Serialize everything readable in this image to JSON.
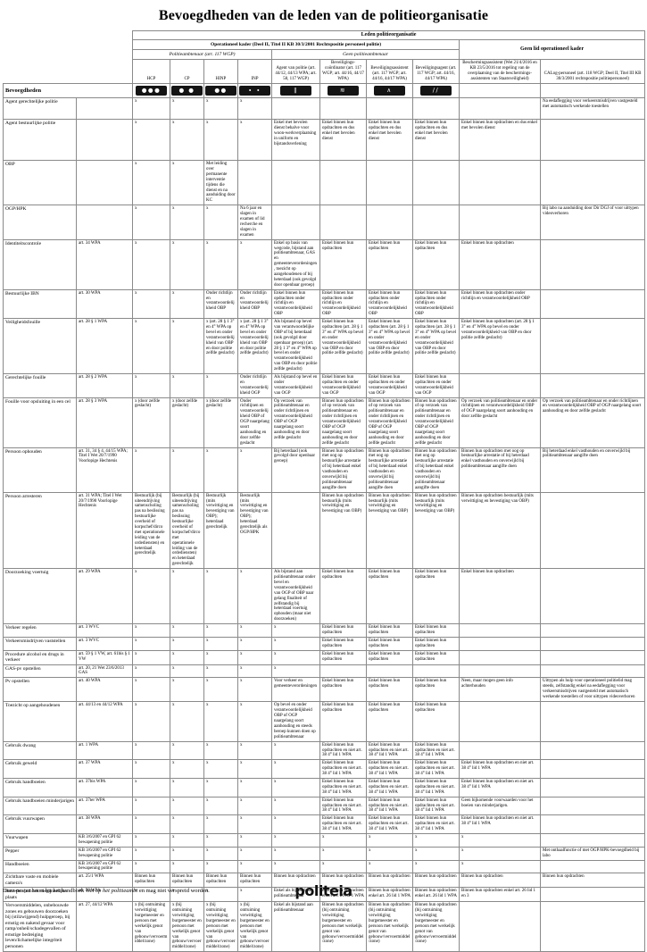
{
  "title": "Bevoegdheden van de leden van de politieorganisatie",
  "header": {
    "leden": "Leden politieorganisatie",
    "operationeel": "Operationeel kader (Deel II, Titel II KB 30/3/2001 Rechtspositie personeel politie)",
    "geen_lid": "Geen lid operationeel kader",
    "politieambtenaar": "Politieambtenaar (art. 117 WGP)",
    "geen_politieambtenaar": "Geen politieambtenaar",
    "bevoegdheden_label": "Bevoegdheden",
    "columns": [
      "HCP",
      "CP",
      "HINP",
      "INP",
      "Agent van politie (art. 44/12, 44/13 WPA; art. 58, 117 WGP)",
      "Beveiligings-coördinator (art. 117 WGP; art. 44/16, 44/17 WPA)",
      "Beveiligingsassistent (art. 117 WGP; art. 44/16, 44/17 WPA)",
      "Beveiligingsagent (art. 117 WGP; art. 44/16, 44/17 WPA)",
      "Beschermingsassistent (Wet 21/4/2016 en KB 23/5/2016 tot regeling van de overplaatsing van de beschermings-assistenten van Staatsveiligheid)",
      "CALog-personeel (art. 118 WGP; Deel II, Titel III KB 30/3/2001 rechtspositie politiepersoneel)"
    ],
    "insignia": [
      {
        "name": "rank-insignia-hcp-icon",
        "glyph": "●●●"
      },
      {
        "name": "rank-insignia-cp-icon",
        "glyph": "● ●"
      },
      {
        "name": "rank-insignia-hinp-icon",
        "glyph": "●●"
      },
      {
        "name": "rank-insignia-inp-icon",
        "glyph": "∙ ∙"
      },
      {
        "name": "rank-insignia-agent-icon",
        "glyph": "‖"
      },
      {
        "name": "rank-insignia-coordinator-icon",
        "glyph": "≋"
      },
      {
        "name": "rank-insignia-assistent-icon",
        "glyph": "∧"
      },
      {
        "name": "rank-insignia-beveiligingsagent-icon",
        "glyph": "∕∕"
      }
    ]
  },
  "table": {
    "rows": [
      {
        "label": "Agent gerechtelijke politie",
        "basis": "",
        "cells": [
          "x",
          "x",
          "x",
          "x",
          "",
          "",
          "",
          "",
          "",
          "Na eedaflegging voor verkeersmisdrijven vastgesteld met automatisch werkende toestellen"
        ]
      },
      {
        "label": "Agent bestuurlijke politie",
        "basis": "",
        "cells": [
          "x",
          "x",
          "x",
          "x",
          "Enkel met bevolen dienst behalve voor woon-werkverplaatsing in uniform en bijstandsverlening",
          "Enkel binnen hun opdrachten en dus enkel met bevolen dienst",
          "Enkel binnen hun opdrachten en dus enkel met bevolen dienst",
          "Enkel binnen hun opdrachten en dus enkel met bevolen dienst",
          "Enkel binnen hun opdrachten en dus enkel met bevolen dienst",
          ""
        ]
      },
      {
        "label": "OBP",
        "basis": "",
        "cells": [
          "x",
          "x",
          "Met leiding over permanente interventie tijdens die dienst en na aanduiding door KC",
          "",
          "",
          "",
          "",
          "",
          "",
          ""
        ]
      },
      {
        "label": "OGP/HPK",
        "basis": "",
        "cells": [
          "x",
          "x",
          "x",
          "Na 6 jaar en slagen in examen of lid recherche en slagen in examen",
          "",
          "",
          "",
          "",
          "",
          "Bij labo na aanduiding door Dir DGJ of voor uittypen videoverhoren"
        ]
      },
      {
        "label": "Identiteitscontrole",
        "basis": "art. 34 WPA",
        "cells": [
          "x",
          "x",
          "x",
          "x",
          "Enkel op basis van wegcode, bijstand aan politieambtenaar, GAS en gemeenteverordeningen, toezicht op aangehoudenen of bij heterdaad (ook gevolgd door openbaar geroep)",
          "Enkel binnen hun opdrachten",
          "Enkel binnen hun opdrachten",
          "Enkel binnen hun opdrachten",
          "Enkel binnen hun opdrachten",
          ""
        ]
      },
      {
        "label": "Bestuurlijke IBN",
        "basis": "art. 30 WPA",
        "cells": [
          "x",
          "x",
          "Onder richtlijn en verantwoordelijkheid OBP",
          "Onder richtlijn en verantwoordelijkheid OBP",
          "Enkel binnen hun opdrachten onder richtlijn en verantwoordelijkheid OBP",
          "Enkel binnen hun opdrachten onder richtlijn en verantwoordelijkheid OBP",
          "Enkel binnen hun opdrachten onder richtlijn en verantwoordelijkheid OBP",
          "Enkel binnen hun opdrachten onder richtlijn en verantwoordelijkheid OBP",
          "Enkel binnen hun opdrachten onder richtlijn en verantwoordelijkheid OBP",
          ""
        ]
      },
      {
        "label": "Veiligheidsfouille",
        "basis": "art. 28 § 1 WPA",
        "cells": [
          "x",
          "x",
          "x (art. 28 § 1 3° en 4° WPA op bevel en onder verantwoordelijkheid van OBP en door politie zelfde geslacht)",
          "x (art. 28 § 1 3° en 4° WPA op bevel en onder verantwoordelijkheid van OBP en door politie zelfde geslacht)",
          "Als bijstand op bevel van verantwoordelijke OBP of bij heterdaad (ook gevolgd door openbaar geroep) (art. 28 § 1 3° en 4° WPA op bevel en onder verantwoordelijkheid van OBP en door politie zelfde geslacht)",
          "Enkel binnen hun opdrachten (art. 28 § 1 3° en 4° WPA op bevel en onder verantwoordelijkheid van OBP en door politie zelfde geslacht)",
          "Enkel binnen hun opdrachten (art. 28 § 1 3° en 4° WPA op bevel en onder verantwoordelijkheid van OBP en door politie zelfde geslacht)",
          "Enkel binnen hun opdrachten (art. 28 § 1 3° en 4° WPA op bevel en onder verantwoordelijkheid van OBP en door politie zelfde geslacht)",
          "Enkel binnen hun opdrachten (art. 28 § 1 3° en 4° WPA op bevel en onder verantwoordelijkheid van OBP en door politie zelfde geslacht)",
          ""
        ]
      },
      {
        "label": "Gerechtelijke fouille",
        "basis": "art. 28 § 2 WPA",
        "cells": [
          "x",
          "x",
          "x",
          "Onder richtlijn en verantwoordelijkheid OGP",
          "Als bijstand op bevel en onder verantwoordelijkheid van OGP",
          "Enkel binnen hun opdrachten en onder verantwoordelijkheid van OGP",
          "Enkel binnen hun opdrachten en onder verantwoordelijkheid van OGP",
          "Enkel binnen hun opdrachten en onder verantwoordelijkheid van OGP",
          "",
          ""
        ]
      },
      {
        "label": "Fouille voor opsluiting in een cel",
        "basis": "art. 28 § 3 WPA",
        "cells": [
          "x (door zelfde geslacht)",
          "x (door zelfde geslacht)",
          "x (door zelfde geslacht)",
          "Onder richtlijnen en verantwoordelijkheid OBP of OGP naargelang soort aanhouding en door zelfde geslacht",
          "Op verzoek van politieambtenaar en onder richtlijnen en verantwoordelijkheid OBP of OGP naargelang soort aanhouding en door zelfde geslacht",
          "Binnen hun opdrachten of op verzoek van politieambtenaar en onder richtlijnen en verantwoordelijkheid OBP of OGP naargelang soort aanhouding en door zelfde geslacht",
          "Binnen hun opdrachten of op verzoek van politieambtenaar en onder richtlijnen en verantwoordelijkheid OBP of OGP naargelang soort aanhouding en door zelfde geslacht",
          "Binnen hun opdrachten of op verzoek van politieambtenaar en onder richtlijnen en verantwoordelijkheid OBP of OGP naargelang soort aanhouding en door zelfde geslacht",
          "Op verzoek van politieambtenaar en onder richtlijnen en verantwoordelijkheid OBP of OGP naargelang soort aanhouding en door zelfde geslacht",
          "Op verzoek van politieambtenaar en onder richtlijnen en verantwoordelijkheid OBP of OGP naargelang soort aanhouding en door zelfde geslacht"
        ]
      },
      {
        "label": "Persoon ophouden",
        "basis": "art. 31, 34 § 4, 44/15 WPA; Titel I Wet 20/7/1990 Voorlopige Hechtenis",
        "cells": [
          "x",
          "x",
          "x",
          "x",
          "Bij heterdaad (ook gevolgd door openbaar geroep)",
          "Binnen hun opdrachten met oog op bestuurlijke arrestatie of bij heterdaad enkel vasthouden en onverwijld bij politieambtenaar aangifte doen",
          "Binnen hun opdrachten met oog op bestuurlijke arrestatie of bij heterdaad enkel vasthouden en onverwijld bij politieambtenaar aangifte doen",
          "Binnen hun opdrachten met oog op bestuurlijke arrestatie of bij heterdaad enkel vasthouden en onverwijld bij politieambtenaar aangifte doen",
          "Binnen hun opdrachten met oog op bestuurlijke arrestatie of bij heterdaad enkel vasthouden en onverwijld bij politieambtenaar aangifte doen",
          "Bij heterdaad enkel vasthouden en onverwijld bij politieambtenaar aangifte doen"
        ]
      },
      {
        "label": "Persoon arresteren",
        "basis": "art. 31 WPA; Titel I Wet 20/7/1990 Voorlopige Hechtenis",
        "cells": [
          "Bestuurlijk (bij uiteendrijving samenscholing pas na beslissing bestuurlijke overheid of korpschef/dirco met operationele leiding van de ordediensten) en heterdaad gerechtelijk",
          "Bestuurlijk (bij uiteendrijving samenscholing pas na beslissing bestuurlijke overheid of korpschef/dirco met operationele leiding van de ordediensten) en heterdaad gerechtelijk",
          "Bestuurlijk (mits verwittiging en bevestiging van OBP); heterdaad gerechtelijk",
          "Bestuurlijk (mits verwittiging en bevestiging van OBP); heterdaad gerechtelijk als OGP/HPK",
          "",
          "Binnen hun opdrachten bestuurlijk (mits verwittiging en bevestiging van OBP)",
          "Binnen hun opdrachten bestuurlijk (mits verwittiging en bevestiging van OBP)",
          "Binnen hun opdrachten bestuurlijk (mits verwittiging en bevestiging van OBP)",
          "Binnen hun opdrachten bestuurlijk (mits verwittiging en bevestiging van OBP)",
          ""
        ]
      },
      {
        "label": "Doorzoeking voertuig",
        "basis": "art. 29 WPA",
        "cells": [
          "x",
          "x",
          "x",
          "x",
          "Als bijstand aan politieambtenaar onder bevel en verantwoordelijkheid van OGP of OBP naar gelang finaliteit of zelfstandig bij heterdaad voertuig ophouden (maar niet doorzoeken)",
          "Enkel binnen hun opdrachten",
          "Enkel binnen hun opdrachten",
          "Enkel binnen hun opdrachten",
          "Enkel binnen hun opdrachten",
          ""
        ]
      },
      {
        "label": "Verkeer regelen",
        "basis": "art. 3 WVC",
        "cells": [
          "x",
          "x",
          "x",
          "x",
          "x",
          "Enkel binnen hun opdrachten",
          "Enkel binnen hun opdrachten",
          "Enkel binnen hun opdrachten",
          "",
          ""
        ]
      },
      {
        "label": "Verkeersmisdrijven vaststellen",
        "basis": "art. 3 WVC",
        "cells": [
          "x",
          "x",
          "x",
          "x",
          "x",
          "Enkel binnen hun opdrachten",
          "Enkel binnen hun opdrachten",
          "Enkel binnen hun opdrachten",
          "",
          ""
        ]
      },
      {
        "label": "Procedure alcohol en drugs in verkeer",
        "basis": "art. 59 § 1 VW, art. 61bis § 1 VW",
        "cells": [
          "x",
          "x",
          "x",
          "x",
          "x",
          "Enkel binnen hun opdrachten",
          "Enkel binnen hun opdrachten",
          "Enkel binnen hun opdrachten",
          "",
          ""
        ]
      },
      {
        "label": "GAS-pv opstellen",
        "basis": "art. 20, 21 Wet 23/6/2013 GAS",
        "cells": [
          "x",
          "x",
          "x",
          "x",
          "x",
          "",
          "",
          "",
          "",
          ""
        ]
      },
      {
        "label": "Pv opstellen",
        "basis": "art. 40 WPA",
        "cells": [
          "x",
          "x",
          "x",
          "x",
          "Voor verkeer en gemeenteverordeningen",
          "Enkel binnen hun opdrachten",
          "Enkel binnen hun opdrachten",
          "Enkel binnen hun opdrachten",
          "Neen, maar mogen geen info achterhouden",
          "Uittypen als hulp voor operationeel politielid mag steeds, zelfstandig enkel na eedaflegging voor verkeersmisdrijven vastgesteld met automatisch werkende toestellen of voor uittypen videoverhoren"
        ]
      },
      {
        "label": "Toezicht op aangehoudenen",
        "basis": "art. 44/13 en 44/12 WPA",
        "cells": [
          "x",
          "x",
          "x",
          "x",
          "Op bevel en onder verantwoordelijkheid OBP of OGP naargelang soort aanhouding en steeds beroep kunnen doen op politieambtenaar",
          "Enkel binnen hun opdrachten",
          "Enkel binnen hun opdrachten",
          "Enkel binnen hun opdrachten",
          "",
          ""
        ]
      },
      {
        "label": "Gebruik dwang",
        "basis": "art. 1 WPA",
        "cells": [
          "x",
          "x",
          "x",
          "x",
          "x",
          "Enkel binnen hun opdrachten en niet art. 38 4° lid 1 WPA",
          "Enkel binnen hun opdrachten en niet art. 38 4° lid 1 WPA",
          "Enkel binnen hun opdrachten en niet art. 38 4° lid 1 WPA",
          "",
          ""
        ]
      },
      {
        "label": "Gebruik geweld",
        "basis": "art. 37 WPA",
        "cells": [
          "x",
          "x",
          "x",
          "x",
          "x",
          "Enkel binnen hun opdrachten en niet art. 38 4° lid 1 WPA",
          "Enkel binnen hun opdrachten en niet art. 38 4° lid 1 WPA",
          "Enkel binnen hun opdrachten en niet art. 38 4° lid 1 WPA",
          "Enkel binnen hun opdrachten en niet art. 38 4° lid 1 WPA",
          ""
        ]
      },
      {
        "label": "Gebruik handboeien",
        "basis": "art. 37bis WPA",
        "cells": [
          "x",
          "x",
          "x",
          "x",
          "x",
          "Enkel binnen hun opdrachten en niet art. 38 4° lid 1 WPA",
          "Enkel binnen hun opdrachten en niet art. 38 4° lid 1 WPA",
          "Enkel binnen hun opdrachten en niet art. 38 4° lid 1 WPA",
          "Enkel binnen hun opdrachten en niet art. 38 4° lid 1 WPA",
          ""
        ]
      },
      {
        "label": "Gebruik handboeien minderjarigen",
        "basis": "art. 37ter WPA",
        "cells": [
          "x",
          "x",
          "x",
          "x",
          "x",
          "Enkel binnen hun opdrachten en niet art. 38 4° lid 1 WPA",
          "Enkel binnen hun opdrachten en niet art. 38 4° lid 1 WPA",
          "Enkel binnen hun opdrachten en niet art. 38 4° lid 1 WPA",
          "Geen bijkomende voorwaarden voor het boeien van minderjarigen.",
          ""
        ]
      },
      {
        "label": "Gebruik vuurwapen",
        "basis": "art. 38 WPA",
        "cells": [
          "x",
          "x",
          "x",
          "x",
          "x",
          "Enkel binnen hun opdrachten en niet art. 38 4° lid 1 WPA",
          "Enkel binnen hun opdrachten en niet art. 38 4° lid 1 WPA",
          "Enkel binnen hun opdrachten en niet art. 38 4° lid 1 WPA",
          "Enkel binnen hun opdrachten en niet art. 38 4° lid 1 WPA",
          ""
        ]
      },
      {
        "label": "Vuurwapen",
        "basis": "KB 3/6/2007 en GPI 62 bewapening politie",
        "cells": [
          "x",
          "x",
          "x",
          "x",
          "x",
          "x",
          "x",
          "x",
          "x",
          ""
        ]
      },
      {
        "label": "Pepper",
        "basis": "KB 3/6/2007 en GPI 62 bewapening politie",
        "cells": [
          "x",
          "x",
          "x",
          "x",
          "x",
          "x",
          "x",
          "x",
          "x",
          "Met onthaalfunctie of met OGP/HPK-bevoegdheid bij labo"
        ]
      },
      {
        "label": "Handboeien",
        "basis": "KB 3/6/2007 en GPI 62 bewapening politie",
        "cells": [
          "x",
          "x",
          "x",
          "x",
          "x",
          "x",
          "x",
          "x",
          "x",
          ""
        ]
      },
      {
        "label": "Zichtbare vaste en mobiele camera's",
        "basis": "art. 25/1 WPA",
        "cells": [
          "Binnen hun opdrachten",
          "Binnen hun opdrachten",
          "Binnen hun opdrachten",
          "Binnen hun opdrachten",
          "Binnen hun opdrachten",
          "Binnen hun opdrachten",
          "Binnen hun opdrachten",
          "Binnen hun opdrachten",
          "Binnen hun opdrachten",
          "Binnen hun opdrachten"
        ]
      },
      {
        "label": "Betreden publiek toegankelijke plaats",
        "basis": "art. 26 WPA",
        "cells": [
          "x",
          "x",
          "x",
          "x",
          "Enkel als bijstand aan politieambtenaar",
          "Binnen hun opdrachten enkel art. 26 lid 1 WPA",
          "Binnen hun opdrachten enkel art. 26 lid 1 WPA",
          "Binnen hun opdrachten enkel art. 26 lid 1 WPA",
          "Binnen hun opdrachten enkel art. 26 lid 1 en 3",
          ""
        ]
      },
      {
        "label": "Vervoersmiddelen, onbebouwde zones en gebouwen doorzoeken bij (stilzwijgend) hulpgeroep, bij ernstig en nakend gevaar voor ramp/onheil/schadegevallen of ernstige bedreiging leven/lichamelijke integriteit personen",
        "basis": "art. 27, 44/12 WPA",
        "cells": [
          "x (bij ontruiming verwittiging burgemeester en persoon met werkelijk genot van gebouw/vervoermiddel/zone)",
          "x (bij ontruiming verwittiging burgemeester en persoon met werkelijk genot van gebouw/vervoermiddel/zone)",
          "x (bij ontruiming verwittiging burgemeester en persoon met werkelijk genot van gebouw/vervoermiddel/zone)",
          "x (bij ontruiming verwittiging burgemeester en persoon met werkelijk genot van gebouw/vervoermiddel/zone)",
          "Enkel als bijstand aan politieambtenaar",
          "Binnen hun opdrachten (bij ontruiming verwittiging burgemeester en persoon met werkelijk genot van gebouw/vervoermiddel/zone)",
          "Binnen hun opdrachten (bij ontruiming verwittiging burgemeester en persoon met werkelijk genot van gebouw/vervoermiddel/zone)",
          "Binnen hun opdrachten (bij ontruiming verwittiging burgemeester en persoon met werkelijk genot van gebouw/vervoermiddel/zone)",
          "",
          ""
        ]
      }
    ]
  },
  "footer": {
    "note_prefix": "Deze poster hoort bij het handboek ",
    "note_book": "Wet op het politieambt",
    "note_suffix": " en mag niet verspreid worden.",
    "logo": "politeia"
  },
  "colors": {
    "badge_bg": "#141414",
    "border": "#8a8a8a",
    "text": "#000000"
  }
}
